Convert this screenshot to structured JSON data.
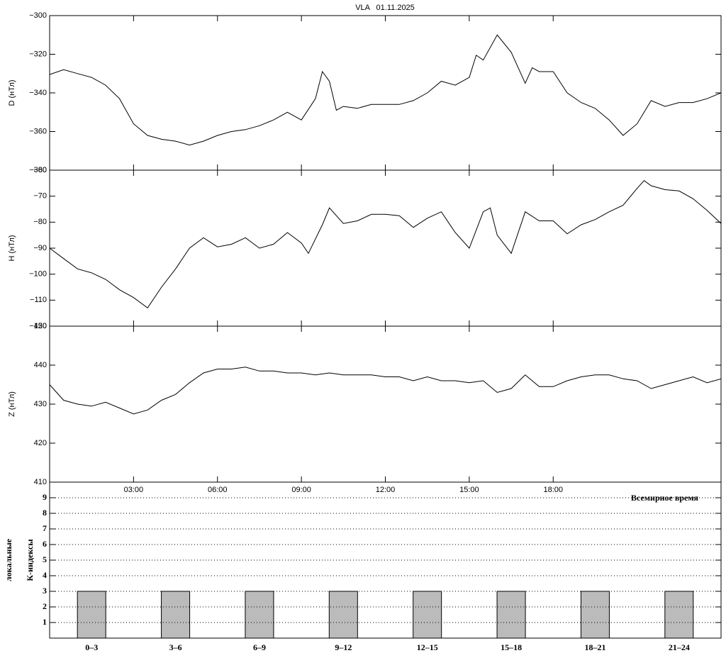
{
  "chart_data": [
    {
      "type": "line",
      "title": "VLA   01.11.2025",
      "ylabel": "D (нТл)",
      "color": "#000000",
      "x": [
        0,
        0.5,
        1,
        1.5,
        2,
        2.5,
        3,
        3.5,
        4,
        4.5,
        5,
        5.5,
        6,
        6.5,
        7,
        7.5,
        8,
        8.5,
        9,
        9.5,
        9.75,
        10,
        10.25,
        10.5,
        11,
        11.5,
        12,
        12.5,
        13,
        13.5,
        14,
        14.5,
        15,
        15.25,
        15.5,
        16,
        16.5,
        17,
        17.25,
        17.5,
        18,
        18.5,
        19,
        19.5,
        20,
        20.5,
        21,
        21.5,
        22,
        22.5,
        23,
        23.5,
        24
      ],
      "values": [
        -330.5,
        -328,
        -330,
        -332,
        -336,
        -343,
        -356,
        -362,
        -364,
        -365,
        -367,
        -365,
        -362,
        -360,
        -359,
        -357,
        -354,
        -350,
        -354,
        -343,
        -329,
        -334,
        -349,
        -347,
        -348,
        -346,
        -346,
        -346,
        -344,
        -340,
        -334,
        -336,
        -332,
        -320.5,
        -323,
        -310,
        -319,
        -335,
        -327,
        -329,
        -329,
        -340,
        -345,
        -348,
        -354,
        -362,
        -356,
        -344,
        -347,
        -345,
        -345,
        -343,
        -340
      ],
      "xlim": [
        0,
        24
      ],
      "ylim": [
        -300,
        -380
      ],
      "yticks": [
        {
          "value": -300,
          "label": "−300"
        },
        {
          "value": -320,
          "label": "−320"
        },
        {
          "value": -340,
          "label": "−340"
        },
        {
          "value": -360,
          "label": "−360"
        },
        {
          "value": -380,
          "label": "−380"
        }
      ]
    },
    {
      "type": "line",
      "ylabel": "H (нТл)",
      "color": "#000000",
      "x": [
        0,
        0.5,
        1,
        1.5,
        2,
        2.5,
        3,
        3.5,
        4,
        4.5,
        5,
        5.5,
        6,
        6.5,
        7,
        7.5,
        8,
        8.5,
        9,
        9.25,
        9.75,
        10,
        10.5,
        11,
        11.5,
        12,
        12.5,
        13,
        13.5,
        14,
        14.5,
        15,
        15.5,
        15.75,
        16,
        16.5,
        17,
        17.5,
        18,
        18.5,
        19,
        19.5,
        20,
        20.5,
        21,
        21.25,
        21.5,
        22,
        22.5,
        23,
        23.5,
        24
      ],
      "values": [
        -90,
        -94,
        -98,
        -99.5,
        -102,
        -106,
        -109,
        -113,
        -105,
        -98,
        -90,
        -86,
        -89.5,
        -88.5,
        -86,
        -90,
        -88.5,
        -84,
        -88,
        -92,
        -81,
        -74.5,
        -80.5,
        -79.5,
        -77,
        -77,
        -77.5,
        -82,
        -78.5,
        -76,
        -84,
        -90,
        -76,
        -74.5,
        -85,
        -92,
        -76,
        -79.5,
        -79.5,
        -84.5,
        -81,
        -79,
        -76,
        -73.5,
        -67,
        -64,
        -66,
        -67.5,
        -68,
        -71,
        -75.5,
        -80.5
      ],
      "xlim": [
        0,
        24
      ],
      "ylim": [
        -60,
        -120
      ],
      "yticks": [
        {
          "value": -60,
          "label": "−60"
        },
        {
          "value": -70,
          "label": "−70"
        },
        {
          "value": -80,
          "label": "−80"
        },
        {
          "value": -90,
          "label": "−90"
        },
        {
          "value": -100,
          "label": "−100"
        },
        {
          "value": -110,
          "label": "−110"
        },
        {
          "value": -120,
          "label": "−120"
        }
      ]
    },
    {
      "type": "line",
      "ylabel": "Z (нТл)",
      "xlabel": "Всемирное время",
      "color": "#000000",
      "x": [
        0,
        0.5,
        1,
        1.5,
        2,
        2.5,
        3,
        3.5,
        4,
        4.5,
        5,
        5.5,
        6,
        6.5,
        7,
        7.5,
        8,
        8.5,
        9,
        9.5,
        10,
        10.5,
        11,
        11.5,
        12,
        12.5,
        13,
        13.5,
        14,
        14.5,
        15,
        15.5,
        16,
        16.5,
        17,
        17.5,
        18,
        18.5,
        19,
        19.5,
        20,
        20.5,
        21,
        21.5,
        22,
        22.5,
        23,
        23.5,
        24
      ],
      "values": [
        435,
        431,
        430,
        429.5,
        430.5,
        429,
        427.5,
        428.5,
        431,
        432.5,
        435.5,
        438,
        439,
        439,
        439.5,
        438.5,
        438.5,
        438,
        438,
        437.5,
        438,
        437.5,
        437.5,
        437.5,
        437,
        437,
        436,
        437,
        436,
        436,
        435.5,
        436,
        433,
        434,
        437.5,
        434.5,
        434.5,
        436,
        437,
        437.5,
        437.5,
        436.5,
        436,
        434,
        435,
        436,
        437,
        435.5,
        436.5
      ],
      "xlim": [
        0,
        24
      ],
      "ylim": [
        450,
        410
      ],
      "xticks": [
        {
          "value": 3,
          "label": "03:00"
        },
        {
          "value": 6,
          "label": "06:00"
        },
        {
          "value": 9,
          "label": "09:00"
        },
        {
          "value": 12,
          "label": "12:00"
        },
        {
          "value": 15,
          "label": "15:00"
        },
        {
          "value": 18,
          "label": "18:00"
        }
      ],
      "yticks": [
        410,
        420,
        430,
        440,
        450
      ]
    },
    {
      "type": "bar",
      "ylabel": [
        "локальные",
        "К-индексы"
      ],
      "color": "#bbbbbb",
      "grid": true,
      "categories": [
        "0–3",
        "3–6",
        "6–9",
        "9–12",
        "12–15",
        "15–18",
        "18–21",
        "21–24"
      ],
      "values": [
        3,
        3,
        3,
        3,
        3,
        3,
        3,
        3
      ],
      "ylim": [
        0,
        10
      ],
      "yticks": [
        1,
        2,
        3,
        4,
        5,
        6,
        7,
        8,
        9
      ]
    }
  ]
}
